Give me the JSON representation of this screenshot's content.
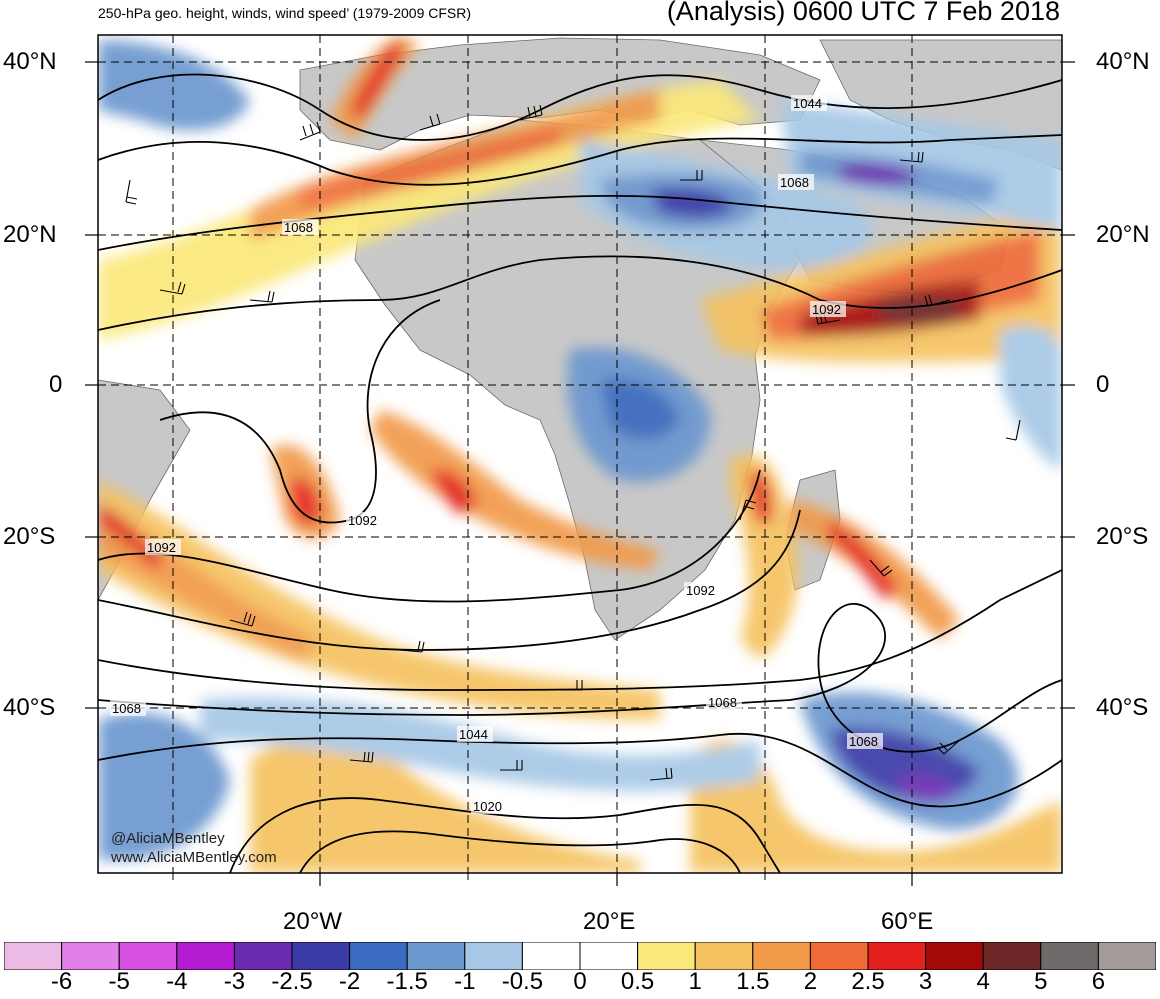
{
  "header": {
    "subtitle": "250-hPa geo. height, winds, wind speed’ (1979-2009 CFSR)",
    "title": "(Analysis) 0600 UTC 7 Feb 2018"
  },
  "lat_labels": [
    "40°N",
    "20°N",
    "0",
    "20°S",
    "40°S"
  ],
  "lon_labels": [
    "20°W",
    "20°E",
    "60°E"
  ],
  "contour_labels": [
    "1044",
    "1068",
    "1068",
    "1092",
    "1092",
    "1092",
    "1092",
    "1068",
    "1068",
    "1068",
    "1044",
    "1020"
  ],
  "credit": {
    "twitter": "@AliciaMBentley",
    "website": "www.AliciaMBentley.com"
  },
  "colorbar": {
    "labels": [
      "-6",
      "-5",
      "-4",
      "-3",
      "-2.5",
      "-2",
      "-1.5",
      "-1",
      "-0.5",
      "0",
      "0.5",
      "1",
      "1.5",
      "2",
      "2.5",
      "3",
      "4",
      "5",
      "6"
    ],
    "colors": [
      "#ebbbe6",
      "#e27fe8",
      "#d850e0",
      "#b31bd3",
      "#6b2bb0",
      "#3b3ba8",
      "#3a6bc0",
      "#6c97cf",
      "#a6c8e6",
      "#ffffff",
      "#ffffff",
      "#fbe87a",
      "#f5c260",
      "#f19a48",
      "#ee6a37",
      "#e3201e",
      "#a50a0a",
      "#6c2626",
      "#6e6a6a",
      "#a39a9a"
    ]
  },
  "colors": {
    "land": "#c8c8c8",
    "contour": "#000000",
    "positive_core": "#a50a0a",
    "negative_core": "#3b3ba8"
  }
}
